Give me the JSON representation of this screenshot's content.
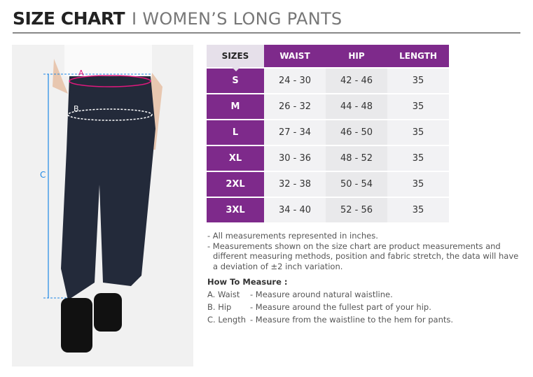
{
  "title": {
    "bold": "SIZE CHART",
    "light": "I WOMEN’S LONG PANTS"
  },
  "photo": {
    "labels": {
      "a": "A",
      "b": "B",
      "c": "C"
    },
    "colors": {
      "a": "#e0197d",
      "c": "#1e88e5"
    }
  },
  "table": {
    "headers": [
      "SIZES",
      "WAIST",
      "HIP",
      "LENGTH"
    ],
    "rows": [
      {
        "size": "S",
        "waist": "24 - 30",
        "hip": "42 - 46",
        "length": "35"
      },
      {
        "size": "M",
        "waist": "26 - 32",
        "hip": "44 - 48",
        "length": "35"
      },
      {
        "size": "L",
        "waist": "27 - 34",
        "hip": "46 - 50",
        "length": "35"
      },
      {
        "size": "XL",
        "waist": "30 - 36",
        "hip": "48 - 52",
        "length": "35"
      },
      {
        "size": "2XL",
        "waist": "32 - 38",
        "hip": "50 - 54",
        "length": "35"
      },
      {
        "size": "3XL",
        "waist": "34 - 40",
        "hip": "52 - 56",
        "length": "35"
      }
    ],
    "accent": "#7e2a8b"
  },
  "notes": [
    "- All measurements represented in inches.",
    "- Measurements shown on the size chart are product measurements and",
    "different measuring methods, position and fabric stretch, the data will have",
    "a deviation of ±2 inch variation."
  ],
  "how": {
    "title": "How To Measure :",
    "items": [
      {
        "k": "A. Waist",
        "v": "- Measure around natural waistline."
      },
      {
        "k": "B. Hip",
        "v": "- Measure around the fullest part of your hip."
      },
      {
        "k": "C. Length",
        "v": "- Measure from the waistline to the hem for pants."
      }
    ]
  }
}
